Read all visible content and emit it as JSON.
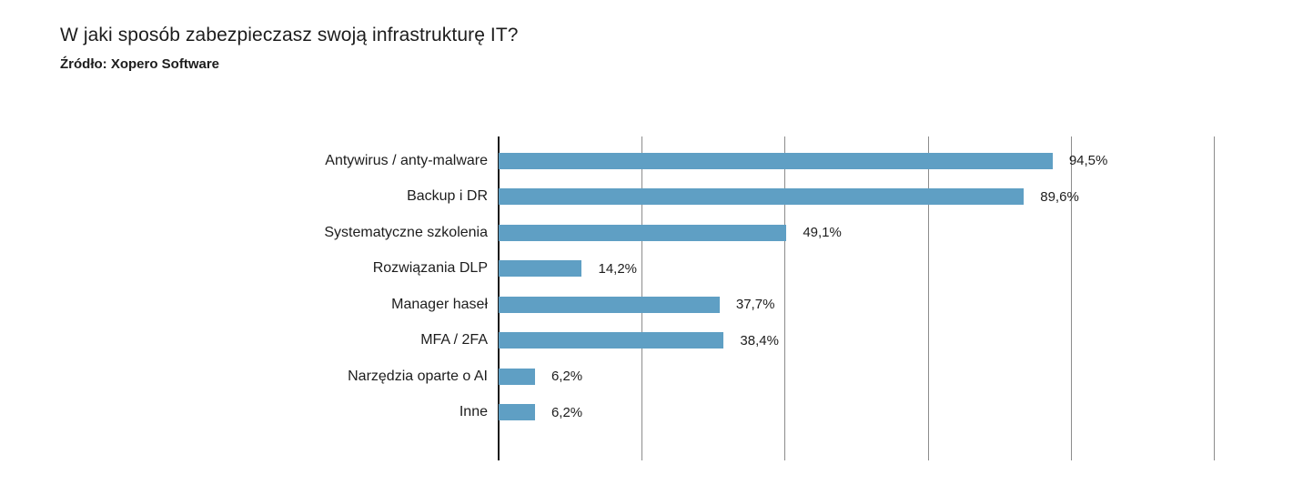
{
  "header": {
    "title": "W jaki sposób zabezpieczasz swoją infrastrukturę IT?",
    "source": "Źródło: Xopero Software"
  },
  "chart_data": {
    "type": "bar",
    "orientation": "horizontal",
    "title": "W jaki sposób zabezpieczasz swoją infrastrukturę IT?",
    "subtitle": "Źródło: Xopero Software",
    "categories": [
      "Antywirus / anty-malware",
      "Backup i DR",
      "Systematyczne szkolenia",
      "Rozwiązania DLP",
      "Manager haseł",
      "MFA / 2FA",
      "Narzędzia oparte o AI",
      "Inne"
    ],
    "values": [
      94.5,
      89.6,
      49.1,
      14.2,
      37.7,
      38.4,
      6.2,
      6.2
    ],
    "value_labels": [
      "94,5%",
      "89,6%",
      "49,1%",
      "14,2%",
      "37,7%",
      "38,4%",
      "6,2%",
      "6,2%"
    ],
    "xlabel": "",
    "ylabel": "",
    "xlim": [
      0,
      122
    ],
    "gridlines": {
      "count": 5,
      "orientation": "vertical",
      "labeled": false
    },
    "legend": "none"
  },
  "style": {
    "bar_color": "#5f9fc4",
    "gridline_color": "#8c8c8c",
    "axis_color": "#1a1a1a",
    "text_color": "#1d1d1d",
    "background": "#ffffff"
  }
}
